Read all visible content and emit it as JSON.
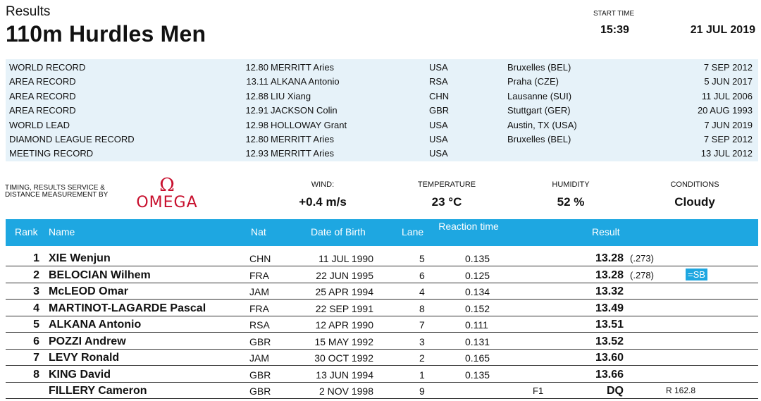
{
  "header": {
    "results_label": "Results",
    "event_title": "110m Hurdles Men",
    "start_time_label": "START TIME",
    "start_time": "15:39",
    "date": "21 JUL 2019"
  },
  "records": [
    {
      "type": "WORLD RECORD",
      "time": "12.80",
      "name": "MERRITT Aries",
      "nat": "USA",
      "venue": "Bruxelles (BEL)",
      "date": "7 SEP 2012"
    },
    {
      "type": "AREA RECORD",
      "time": "13.11",
      "name": "ALKANA Antonio",
      "nat": "RSA",
      "venue": "Praha (CZE)",
      "date": "5 JUN 2017"
    },
    {
      "type": "AREA RECORD",
      "time": "12.88",
      "name": "LIU Xiang",
      "nat": "CHN",
      "venue": "Lausanne (SUI)",
      "date": "11 JUL 2006"
    },
    {
      "type": "AREA RECORD",
      "time": "12.91",
      "name": "JACKSON Colin",
      "nat": "GBR",
      "venue": "Stuttgart (GER)",
      "date": "20 AUG 1993"
    },
    {
      "type": "WORLD LEAD",
      "time": "12.98",
      "name": "HOLLOWAY Grant",
      "nat": "USA",
      "venue": "Austin, TX (USA)",
      "date": "7 JUN 2019"
    },
    {
      "type": "DIAMOND LEAGUE RECORD",
      "time": "12.80",
      "name": "MERRITT Aries",
      "nat": "USA",
      "venue": "Bruxelles (BEL)",
      "date": "7 SEP 2012"
    },
    {
      "type": "MEETING RECORD",
      "time": "12.93",
      "name": "MERRITT Aries",
      "nat": "USA",
      "venue": "",
      "date": "13 JUL 2012"
    }
  ],
  "sponsor": {
    "label": "TIMING, RESULTS SERVICE & DISTANCE MEASUREMENT BY",
    "logo_text": "OMEGA",
    "logo_color": "#c8102e"
  },
  "conditions": {
    "wind_label": "WIND:",
    "wind": "+0.4 m/s",
    "temperature_label": "TEMPERATURE",
    "temperature": "23 °C",
    "humidity_label": "HUMIDITY",
    "humidity": "52 %",
    "conditions_label": "CONDITIONS",
    "conditions": "Cloudy"
  },
  "table": {
    "accent_color": "#1ea7e1",
    "headers": {
      "rank": "Rank",
      "name": "Name",
      "nat": "Nat",
      "dob": "Date of Birth",
      "lane": "Lane",
      "reaction": "Reaction time",
      "result": "Result"
    },
    "rows": [
      {
        "rank": "1",
        "name": "XIE Wenjun",
        "nat": "CHN",
        "dob": "11 JUL 1990",
        "lane": "5",
        "reaction": "0.135",
        "note": "",
        "result": "13.28",
        "exact": "(.273)",
        "extra": "",
        "badge": ""
      },
      {
        "rank": "2",
        "name": "BELOCIAN Wilhem",
        "nat": "FRA",
        "dob": "22 JUN 1995",
        "lane": "6",
        "reaction": "0.125",
        "note": "",
        "result": "13.28",
        "exact": "(.278)",
        "extra": "",
        "badge": "=SB"
      },
      {
        "rank": "3",
        "name": "McLEOD Omar",
        "nat": "JAM",
        "dob": "25 APR 1994",
        "lane": "4",
        "reaction": "0.134",
        "note": "",
        "result": "13.32",
        "exact": "",
        "extra": "",
        "badge": ""
      },
      {
        "rank": "4",
        "name": "MARTINOT-LAGARDE Pascal",
        "nat": "FRA",
        "dob": "22 SEP 1991",
        "lane": "8",
        "reaction": "0.152",
        "note": "",
        "result": "13.49",
        "exact": "",
        "extra": "",
        "badge": ""
      },
      {
        "rank": "5",
        "name": "ALKANA Antonio",
        "nat": "RSA",
        "dob": "12 APR 1990",
        "lane": "7",
        "reaction": "0.111",
        "note": "",
        "result": "13.51",
        "exact": "",
        "extra": "",
        "badge": ""
      },
      {
        "rank": "6",
        "name": "POZZI Andrew",
        "nat": "GBR",
        "dob": "15 MAY 1992",
        "lane": "3",
        "reaction": "0.131",
        "note": "",
        "result": "13.52",
        "exact": "",
        "extra": "",
        "badge": ""
      },
      {
        "rank": "7",
        "name": "LEVY Ronald",
        "nat": "JAM",
        "dob": "30 OCT 1992",
        "lane": "2",
        "reaction": "0.165",
        "note": "",
        "result": "13.60",
        "exact": "",
        "extra": "",
        "badge": ""
      },
      {
        "rank": "8",
        "name": "KING David",
        "nat": "GBR",
        "dob": "13 JUN 1994",
        "lane": "1",
        "reaction": "0.135",
        "note": "",
        "result": "13.66",
        "exact": "",
        "extra": "",
        "badge": ""
      },
      {
        "rank": "",
        "name": "FILLERY Cameron",
        "nat": "GBR",
        "dob": "2 NOV 1998",
        "lane": "9",
        "reaction": "",
        "note": "F1",
        "result": "DQ",
        "exact": "",
        "extra": "R 162.8",
        "badge": ""
      }
    ]
  }
}
